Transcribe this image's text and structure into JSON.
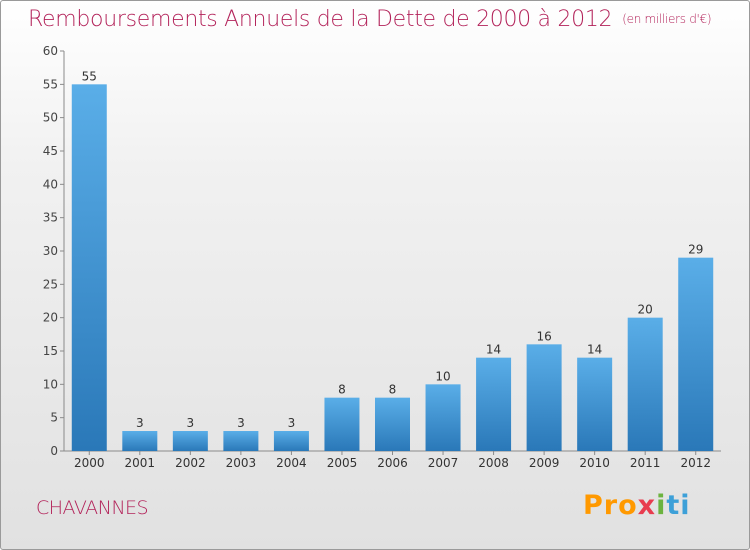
{
  "header": {
    "title": "Remboursements Annuels de la Dette de 2000 à 2012",
    "unit": "(en milliers d'€)"
  },
  "footer": {
    "commune": "CHAVANNES",
    "logo": [
      "Pro",
      "x",
      "i",
      "ti"
    ]
  },
  "colors": {
    "title": "#b3235a",
    "bar_top": "#5aaee8",
    "bar_bottom": "#2a78b8"
  },
  "chart_data": {
    "type": "bar",
    "categories": [
      "2000",
      "2001",
      "2002",
      "2003",
      "2004",
      "2005",
      "2006",
      "2007",
      "2008",
      "2009",
      "2010",
      "2011",
      "2012"
    ],
    "values": [
      55,
      3,
      3,
      3,
      3,
      8,
      8,
      10,
      14,
      16,
      14,
      20,
      29
    ],
    "ylim": [
      0,
      60
    ],
    "yticks": [
      0,
      5,
      10,
      15,
      20,
      25,
      30,
      35,
      40,
      45,
      50,
      55,
      60
    ],
    "grid": false,
    "data_labels": true
  }
}
